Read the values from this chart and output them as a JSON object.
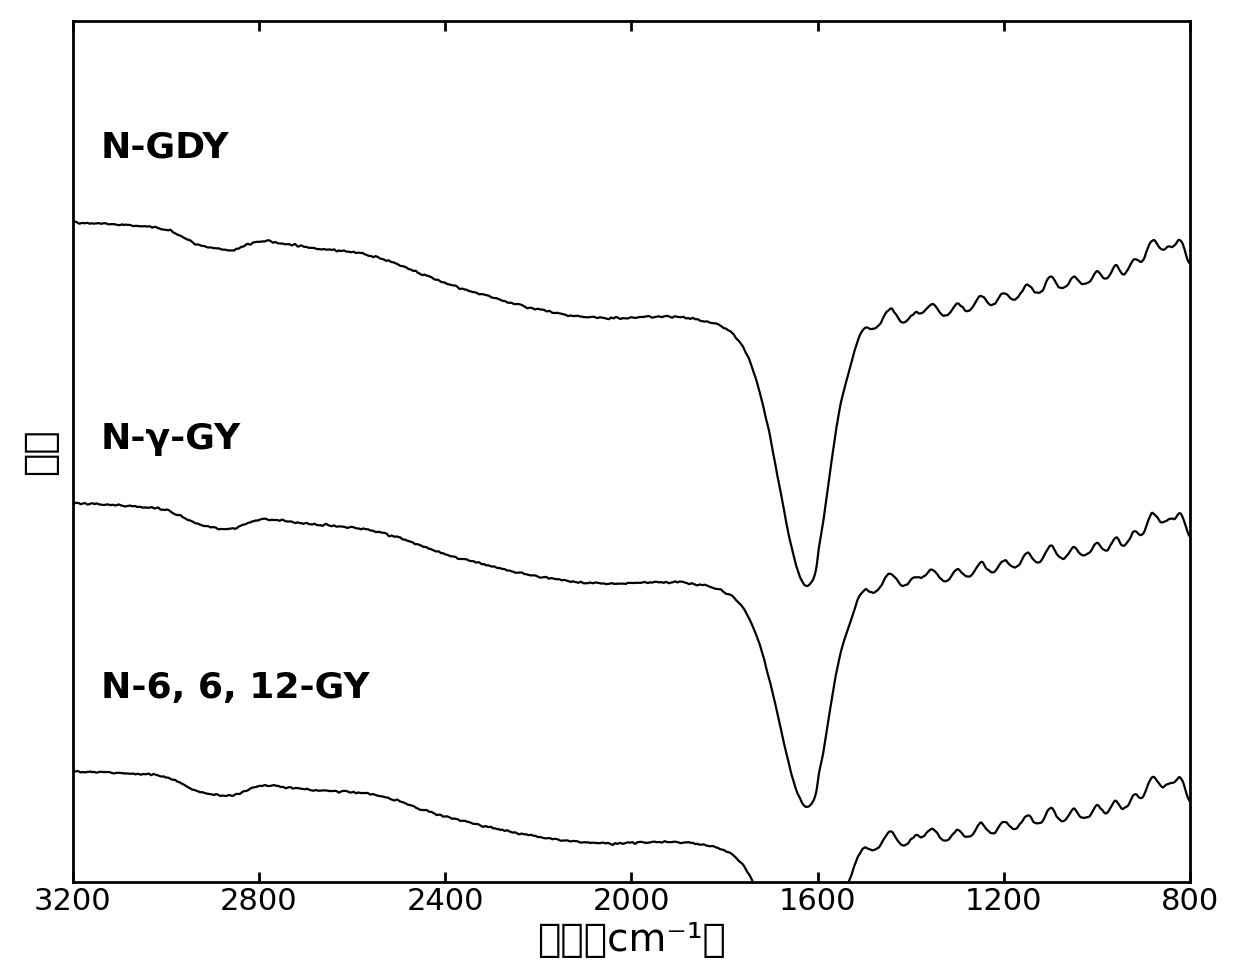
{
  "title": "",
  "xlabel": "波数（cm⁻¹）",
  "ylabel": "强度",
  "xlim": [
    3200,
    800
  ],
  "ylim": [
    -0.05,
    3.2
  ],
  "labels": [
    "N-GDY",
    "N-γ-GY",
    "N-6, 6, 12-GY"
  ],
  "offsets": [
    1.95,
    0.97,
    0.0
  ],
  "line_color": "#000000",
  "background_color": "#ffffff",
  "tick_fontsize": 22,
  "label_fontsize": 26,
  "line_width": 1.6,
  "xticks": [
    3200,
    2800,
    2400,
    2000,
    1600,
    1200,
    800
  ]
}
